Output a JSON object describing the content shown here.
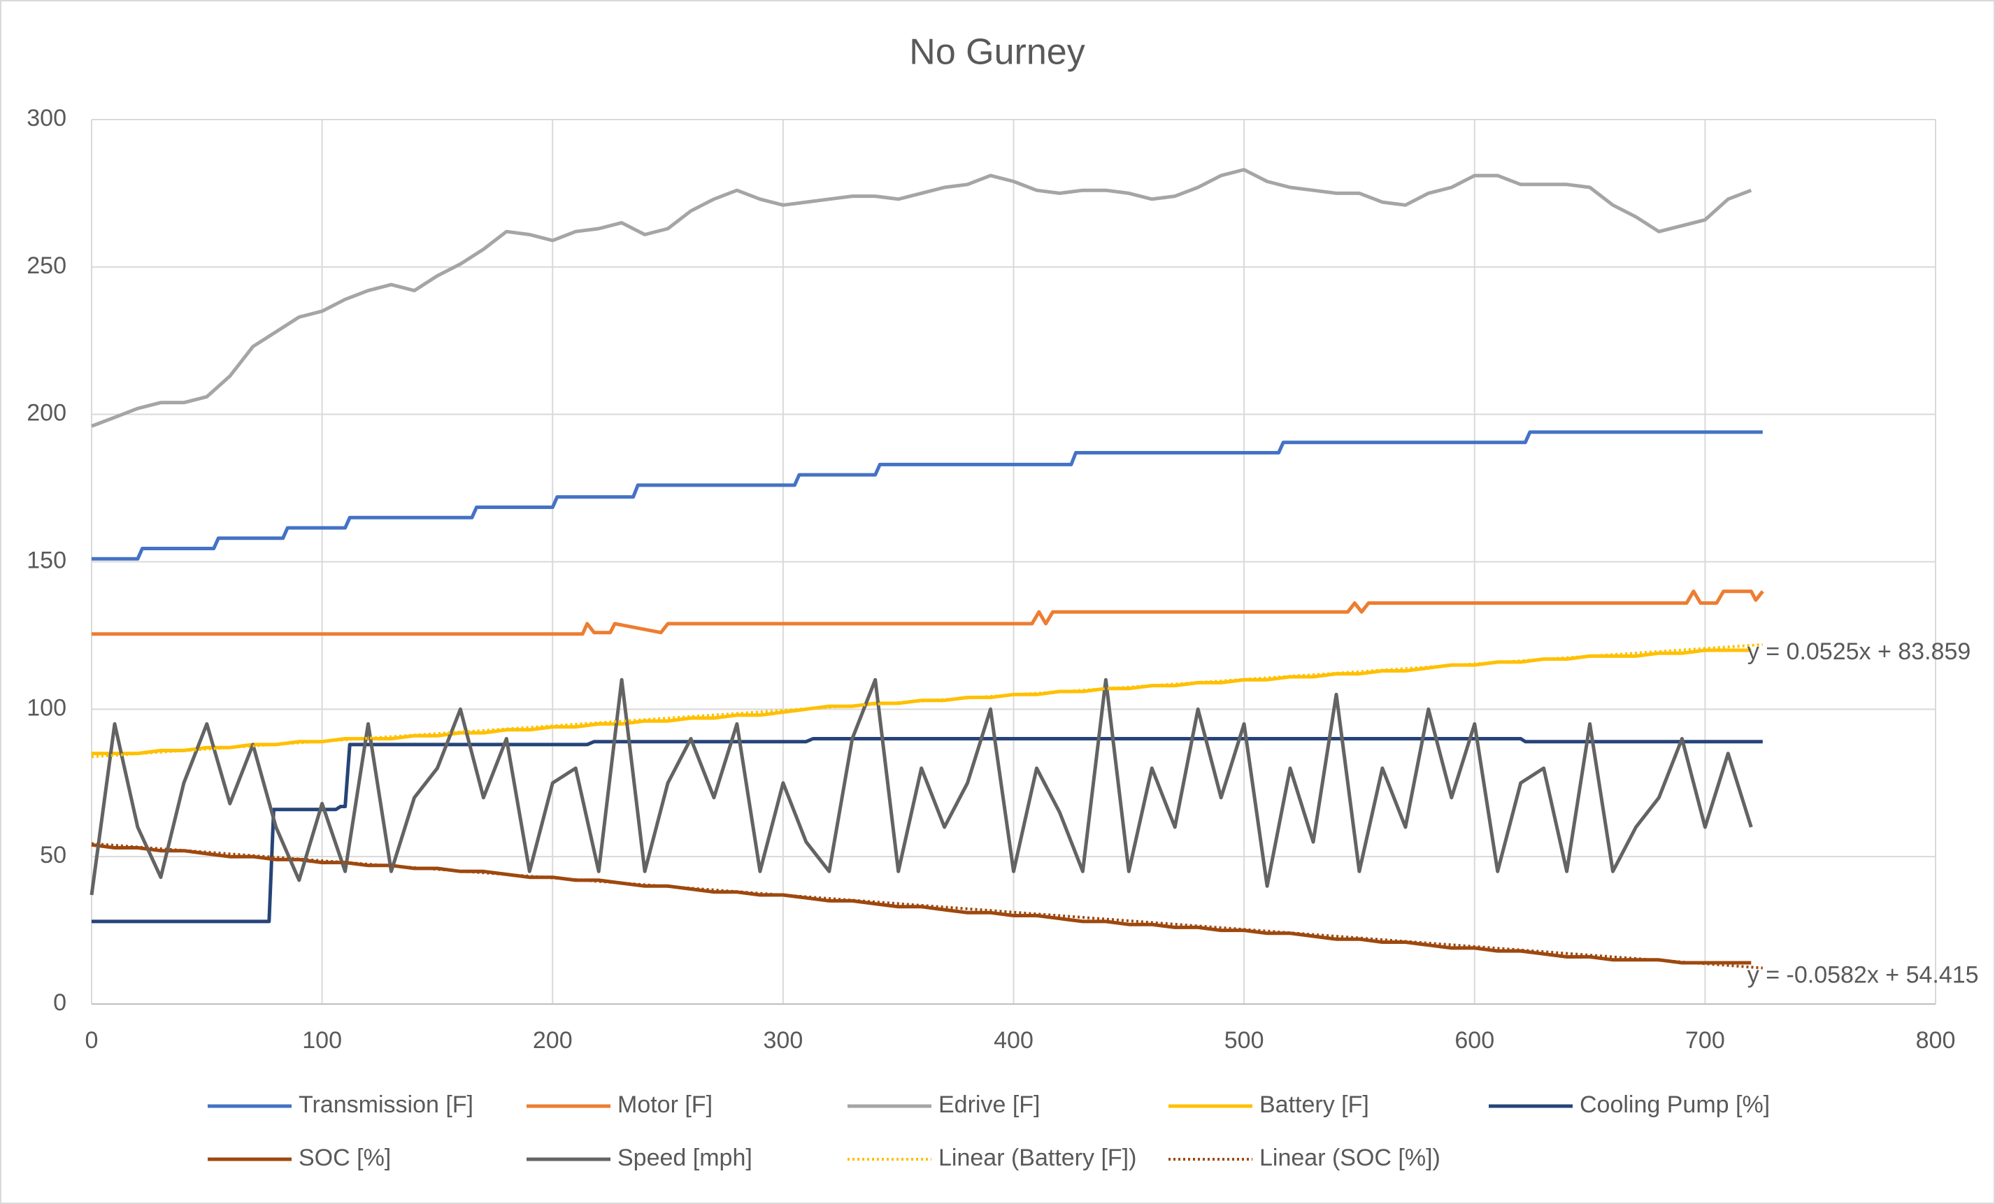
{
  "chart_data": {
    "type": "line",
    "title": "No Gurney",
    "x": [
      0,
      10,
      20,
      30,
      40,
      50,
      60,
      70,
      80,
      90,
      100,
      110,
      120,
      130,
      140,
      150,
      160,
      170,
      180,
      190,
      200,
      210,
      220,
      230,
      240,
      250,
      260,
      270,
      280,
      290,
      300,
      310,
      320,
      330,
      340,
      350,
      360,
      370,
      380,
      390,
      400,
      410,
      420,
      430,
      440,
      450,
      460,
      470,
      480,
      490,
      500,
      510,
      520,
      530,
      540,
      550,
      560,
      570,
      580,
      590,
      600,
      610,
      620,
      630,
      640,
      650,
      660,
      670,
      680,
      690,
      700,
      710,
      720
    ],
    "series": [
      {
        "name": "Transmission [F]",
        "color": "#4472c4",
        "x": [
          0,
          20,
          22,
          53,
          55,
          83,
          85,
          110,
          112,
          165,
          167,
          200,
          202,
          235,
          237,
          305,
          307,
          340,
          342,
          425,
          427,
          515,
          517,
          622,
          624,
          725
        ],
        "values": [
          151,
          151,
          154.5,
          154.5,
          158,
          158,
          161.5,
          161.5,
          165,
          165,
          168.5,
          168.5,
          172,
          172,
          176,
          176,
          179.5,
          179.5,
          183,
          183,
          187,
          187,
          190.5,
          190.5,
          194,
          194
        ]
      },
      {
        "name": "Motor [F]",
        "color": "#ed7d31",
        "x": [
          0,
          213,
          215,
          218,
          225,
          227,
          247,
          250,
          408,
          411,
          414,
          417,
          545,
          548,
          551,
          554,
          692,
          695,
          698,
          705,
          708,
          720,
          722,
          725
        ],
        "values": [
          125.5,
          125.5,
          129,
          126,
          126,
          129,
          126,
          129,
          129,
          133,
          129,
          133,
          133,
          136,
          133,
          136,
          136,
          140,
          136,
          136,
          140,
          140,
          137,
          140
        ]
      },
      {
        "name": "Edrive [F]",
        "color": "#a5a5a5",
        "values": [
          196,
          199,
          202,
          204,
          204,
          206,
          213,
          223,
          228,
          233,
          235,
          239,
          242,
          244,
          242,
          247,
          251,
          256,
          262,
          261,
          259,
          262,
          263,
          265,
          261,
          263,
          269,
          273,
          276,
          273,
          271,
          272,
          273,
          274,
          274,
          273,
          275,
          277,
          278,
          281,
          279,
          276,
          275,
          276,
          276,
          275,
          273,
          274,
          277,
          281,
          283,
          279,
          277,
          276,
          275,
          275,
          272,
          271,
          275,
          277,
          281,
          281,
          278,
          278,
          278,
          277,
          271,
          267,
          262,
          264,
          266,
          273,
          276
        ]
      },
      {
        "name": "Battery [F]",
        "color": "#ffc000",
        "values": [
          85,
          85,
          85,
          86,
          86,
          87,
          87,
          88,
          88,
          89,
          89,
          90,
          90,
          90,
          91,
          91,
          92,
          92,
          93,
          93,
          94,
          94,
          95,
          95,
          96,
          96,
          97,
          97,
          98,
          98,
          99,
          100,
          101,
          101,
          102,
          102,
          103,
          103,
          104,
          104,
          105,
          105,
          106,
          106,
          107,
          107,
          108,
          108,
          109,
          109,
          110,
          110,
          111,
          111,
          112,
          112,
          113,
          113,
          114,
          115,
          115,
          116,
          116,
          117,
          117,
          118,
          118,
          118,
          119,
          119,
          120,
          120,
          120
        ]
      },
      {
        "name": "Cooling Pump [%]",
        "color": "#264478",
        "x": [
          0,
          77,
          79,
          106,
          108,
          110,
          112,
          215,
          218,
          310,
          313,
          620,
          622,
          725
        ],
        "values": [
          28,
          28,
          66,
          66,
          67,
          67,
          88,
          88,
          89,
          89,
          90,
          90,
          89,
          89
        ]
      },
      {
        "name": "SOC [%]",
        "color": "#9e480e",
        "values": [
          54,
          53,
          53,
          52,
          52,
          51,
          50,
          50,
          49,
          49,
          48,
          48,
          47,
          47,
          46,
          46,
          45,
          45,
          44,
          43,
          43,
          42,
          42,
          41,
          40,
          40,
          39,
          38,
          38,
          37,
          37,
          36,
          35,
          35,
          34,
          33,
          33,
          32,
          31,
          31,
          30,
          30,
          29,
          28,
          28,
          27,
          27,
          26,
          26,
          25,
          25,
          24,
          24,
          23,
          22,
          22,
          21,
          21,
          20,
          19,
          19,
          18,
          18,
          17,
          16,
          16,
          15,
          15,
          15,
          14,
          14,
          14,
          14
        ]
      },
      {
        "name": "Speed [mph]",
        "color": "#636363",
        "values": [
          37,
          95,
          60,
          43,
          75,
          95,
          68,
          88,
          60,
          42,
          68,
          45,
          95,
          45,
          70,
          80,
          100,
          70,
          90,
          45,
          75,
          80,
          45,
          110,
          45,
          75,
          90,
          70,
          95,
          45,
          75,
          55,
          45,
          90,
          110,
          45,
          80,
          60,
          75,
          100,
          45,
          80,
          65,
          45,
          110,
          45,
          80,
          60,
          100,
          70,
          95,
          40,
          80,
          55,
          105,
          45,
          80,
          60,
          100,
          70,
          95,
          45,
          75,
          80,
          45,
          95,
          45,
          60,
          70,
          90,
          60,
          85,
          60
        ]
      }
    ],
    "trendlines": [
      {
        "name": "Linear (Battery [F])",
        "color": "#ffc000",
        "slope": 0.0525,
        "intercept": 83.859,
        "xrange": [
          0,
          725
        ],
        "label": "y = 0.0525x + 83.859"
      },
      {
        "name": "Linear (SOC [%])",
        "color": "#9e480e",
        "slope": -0.0582,
        "intercept": 54.415,
        "xrange": [
          0,
          725
        ],
        "label": "y = -0.0582x + 54.415"
      }
    ],
    "xlim": [
      0,
      800
    ],
    "xticks": [
      0,
      100,
      200,
      300,
      400,
      500,
      600,
      700,
      800
    ],
    "ylim": [
      0,
      300
    ],
    "yticks": [
      0,
      50,
      100,
      150,
      200,
      250,
      300
    ],
    "grid": true
  }
}
